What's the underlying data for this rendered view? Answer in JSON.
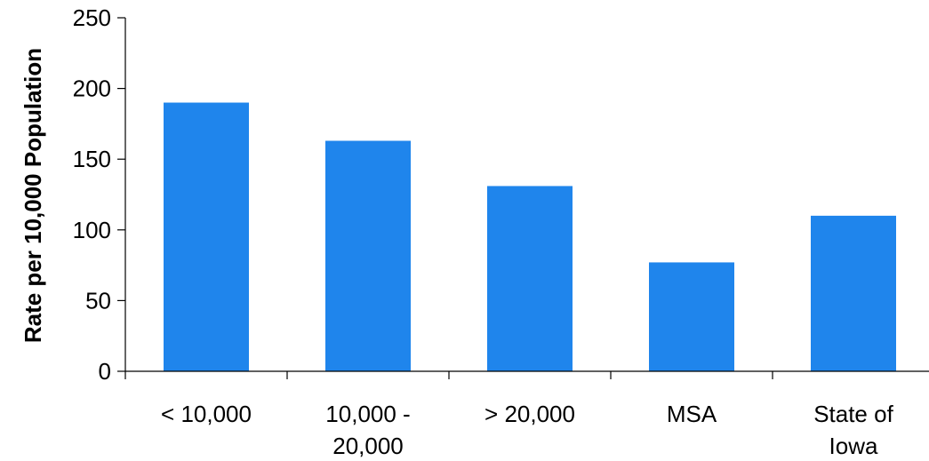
{
  "chart_data": {
    "type": "bar",
    "title": "",
    "xlabel": "",
    "ylabel": "Rate per 10,000 Population",
    "ylim": [
      0,
      250
    ],
    "yticks": [
      0,
      50,
      100,
      150,
      200,
      250
    ],
    "categories": [
      [
        "< 10,000"
      ],
      [
        "10,000 -",
        "20,000"
      ],
      [
        "> 20,000"
      ],
      [
        "MSA"
      ],
      [
        "State of",
        "Iowa"
      ]
    ],
    "values": [
      190,
      163,
      131,
      77,
      110
    ],
    "grid": false,
    "legend": "none",
    "bar_color": "#1f85ec"
  }
}
